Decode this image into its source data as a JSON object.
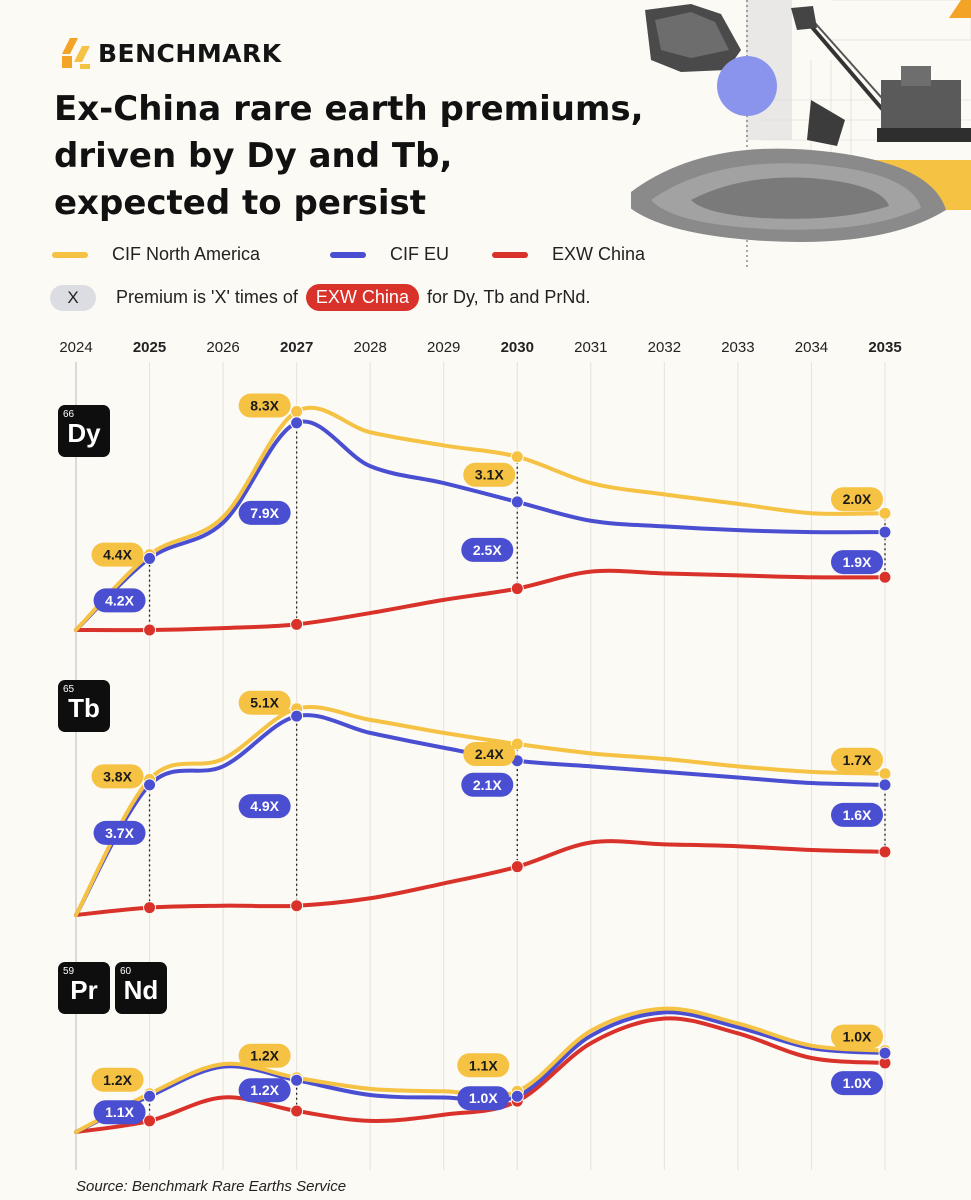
{
  "brand": {
    "name": "BENCHMARK"
  },
  "title_lines": [
    "Ex-China rare earth premiums,",
    "driven by Dy and Tb,",
    "expected to persist"
  ],
  "legend": [
    {
      "label": "CIF North America",
      "color": "#f5c243"
    },
    {
      "label": "CIF EU",
      "color": "#4a4fd1"
    },
    {
      "label": "EXW China",
      "color": "#d8322b"
    }
  ],
  "note": {
    "badge": "X",
    "prefix": "Premium is 'X' times of",
    "highlight": "EXW China",
    "suffix": "for Dy, Tb and PrNd."
  },
  "source": "Source: Benchmark Rare Earths Service",
  "chart_data": {
    "type": "line",
    "title": "Ex-China rare earth premiums, driven by Dy and Tb, expected to persist",
    "x": [
      2024,
      2025,
      2026,
      2027,
      2028,
      2029,
      2030,
      2031,
      2032,
      2033,
      2034,
      2035
    ],
    "x_bold": [
      2025,
      2027,
      2030,
      2035
    ],
    "highlight_years": [
      2025,
      2027,
      2030,
      2035
    ],
    "grid": true,
    "legend_position": "top-left",
    "y_axis": "relative price (unlabelled)",
    "panels": [
      {
        "element": "Dy",
        "atomic_number": "66",
        "series": [
          {
            "name": "CIF North America",
            "color": "#f5c243",
            "values": [
              0,
              40,
              60,
              116,
              105,
              98,
              92,
              78,
              72,
              67,
              62,
              62
            ]
          },
          {
            "name": "CIF EU",
            "color": "#4a4fd1",
            "values": [
              0,
              38,
              57,
              110,
              87,
              78,
              68,
              58,
              55,
              53,
              52,
              52
            ]
          },
          {
            "name": "EXW China",
            "color": "#d8322b",
            "values": [
              0,
              0,
              1,
              3,
              9,
              16,
              22,
              31,
              30,
              29,
              28,
              28
            ]
          }
        ],
        "labels": [
          {
            "x": 2025,
            "north_america": "4.4X",
            "eu": "4.2X"
          },
          {
            "x": 2027,
            "north_america": "8.3X",
            "eu": "7.9X"
          },
          {
            "x": 2030,
            "north_america": "3.1X",
            "eu": "2.5X"
          },
          {
            "x": 2035,
            "north_america": "2.0X",
            "eu": "1.9X"
          }
        ]
      },
      {
        "element": "Tb",
        "atomic_number": "65",
        "series": [
          {
            "name": "CIF North America",
            "color": "#f5c243",
            "values": [
              0,
              73,
              84,
              111,
              105,
              98,
              92,
              87,
              84,
              80,
              77,
              76
            ]
          },
          {
            "name": "CIF EU",
            "color": "#4a4fd1",
            "values": [
              0,
              70,
              80,
              107,
              98,
              90,
              83,
              80,
              77,
              74,
              71,
              70
            ]
          },
          {
            "name": "EXW China",
            "color": "#d8322b",
            "values": [
              0,
              4,
              5,
              5,
              9,
              17,
              26,
              39,
              38,
              37,
              35,
              34
            ]
          }
        ],
        "labels": [
          {
            "x": 2025,
            "north_america": "3.8X",
            "eu": "3.7X"
          },
          {
            "x": 2027,
            "north_america": "5.1X",
            "eu": "4.9X"
          },
          {
            "x": 2030,
            "north_america": "2.4X",
            "eu": "2.1X"
          },
          {
            "x": 2035,
            "north_america": "1.7X",
            "eu": "1.6X"
          }
        ]
      },
      {
        "element": "PrNd",
        "elements": [
          {
            "symbol": "Pr",
            "atomic_number": "59"
          },
          {
            "symbol": "Nd",
            "atomic_number": "60"
          }
        ],
        "series": [
          {
            "name": "CIF North America",
            "color": "#f5c243",
            "values": [
              0,
              31,
              55,
              44,
              35,
              33,
              33,
              82,
              100,
              88,
              70,
              66
            ]
          },
          {
            "name": "CIF EU",
            "color": "#4a4fd1",
            "values": [
              0,
              29,
              53,
              42,
              30,
              28,
              29,
              78,
              97,
              85,
              68,
              64
            ]
          },
          {
            "name": "EXW China",
            "color": "#d8322b",
            "values": [
              0,
              9,
              28,
              17,
              9,
              14,
              25,
              72,
              92,
              80,
              60,
              56
            ]
          }
        ],
        "labels": [
          {
            "x": 2025,
            "north_america": "1.2X",
            "eu": "1.1X"
          },
          {
            "x": 2027,
            "north_america": "1.2X",
            "eu": "1.2X"
          },
          {
            "x": 2030,
            "north_america": "1.1X",
            "eu": "1.0X"
          },
          {
            "x": 2035,
            "north_america": "1.0X",
            "eu": "1.0X"
          }
        ]
      }
    ]
  }
}
